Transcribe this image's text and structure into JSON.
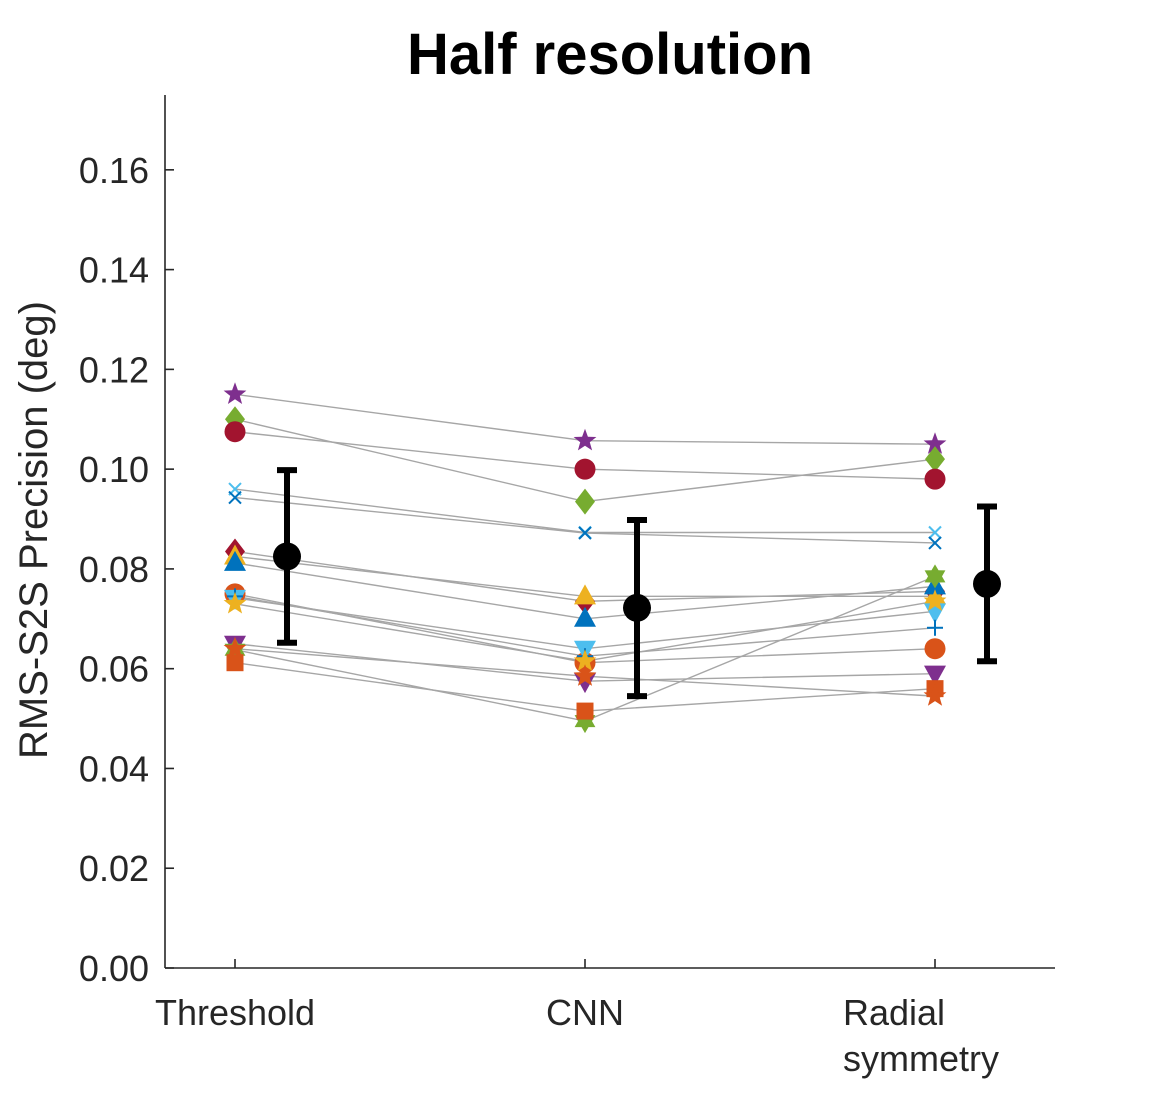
{
  "chart_data": {
    "type": "scatter",
    "title": "Half resolution",
    "xlabel": "",
    "ylabel": "RMS-S2S Precision (deg)",
    "categories": [
      "Threshold",
      "CNN",
      "Radial symmetry"
    ],
    "category_lines": [
      [
        "Threshold"
      ],
      [
        "CNN"
      ],
      [
        "Radial",
        "symmetry"
      ]
    ],
    "ylim": [
      0,
      0.175
    ],
    "yticks": [
      0.0,
      0.02,
      0.04,
      0.06,
      0.08,
      0.1,
      0.12,
      0.14,
      0.16
    ],
    "ytick_labels": [
      "0.00",
      "0.02",
      "0.04",
      "0.06",
      "0.08",
      "0.10",
      "0.12",
      "0.14",
      "0.16"
    ],
    "grid": false,
    "connector_color": "#a6a6a6",
    "series": [
      {
        "marker": "star",
        "color": "#7e2f8e",
        "values": [
          0.115,
          0.1057,
          0.105
        ]
      },
      {
        "marker": "diamond",
        "color": "#77ac30",
        "values": [
          0.11,
          0.0935,
          0.102
        ]
      },
      {
        "marker": "circle",
        "color": "#a2142f",
        "values": [
          0.1075,
          0.1,
          0.098
        ]
      },
      {
        "marker": "x",
        "color": "#4dbeee",
        "values": [
          0.096,
          0.0873,
          0.0873
        ]
      },
      {
        "marker": "x",
        "color": "#0072bd",
        "values": [
          0.0943,
          0.0872,
          0.0852
        ]
      },
      {
        "marker": "diamond",
        "color": "#a2142f",
        "values": [
          0.0835,
          0.0735,
          0.0755
        ]
      },
      {
        "marker": "up-triangle",
        "color": "#edb120",
        "values": [
          0.0825,
          0.0745,
          0.0745
        ]
      },
      {
        "marker": "up-triangle",
        "color": "#0072bd",
        "values": [
          0.0812,
          0.07,
          0.0765
        ]
      },
      {
        "marker": "circle",
        "color": "#d95319",
        "values": [
          0.075,
          0.0612,
          0.064
        ]
      },
      {
        "marker": "down-triangle",
        "color": "#4dbeee",
        "values": [
          0.0742,
          0.064,
          0.0715
        ]
      },
      {
        "marker": "plus",
        "color": "#0072bd",
        "values": [
          0.0745,
          0.0625,
          0.0682
        ]
      },
      {
        "marker": "star",
        "color": "#edb120",
        "values": [
          0.073,
          0.0615,
          0.0735
        ]
      },
      {
        "marker": "down-triangle",
        "color": "#7e2f8e",
        "values": [
          0.065,
          0.0575,
          0.059
        ]
      },
      {
        "marker": "hexagram",
        "color": "#77ac30",
        "values": [
          0.0638,
          0.0495,
          0.0785
        ]
      },
      {
        "marker": "square",
        "color": "#d95319",
        "values": [
          0.0612,
          0.0515,
          0.056
        ]
      },
      {
        "marker": "star",
        "color": "#d95319",
        "values": [
          0.064,
          0.0585,
          0.0545
        ]
      }
    ],
    "summary": {
      "marker": "circle",
      "color": "#000000",
      "mean": [
        0.0825,
        0.0722,
        0.077
      ],
      "error_low": [
        0.0652,
        0.0545,
        0.0615
      ],
      "error_high": [
        0.0998,
        0.0898,
        0.0925
      ]
    }
  }
}
